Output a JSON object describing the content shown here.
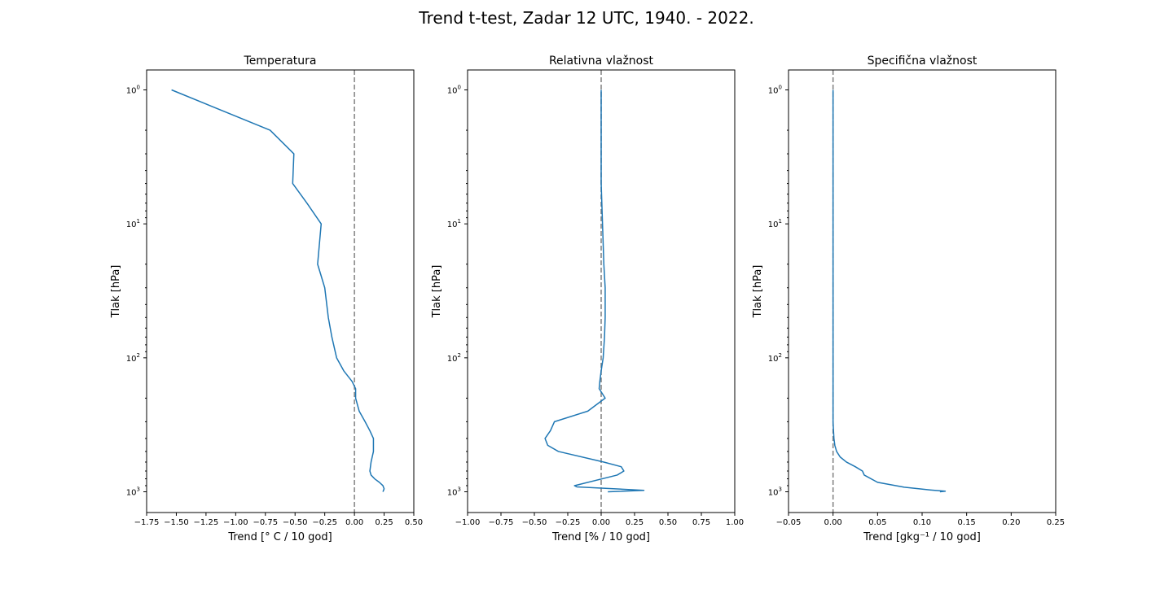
{
  "figure": {
    "title": "Trend t-test, Zadar 12 UTC, 1940. - 2022."
  },
  "chart_data": [
    {
      "type": "line",
      "title": "Temperatura",
      "xlabel": "Trend [° C / 10 god]",
      "ylabel": "Tlak [hPa]",
      "xlim": [
        -1.75,
        0.5
      ],
      "ylim": [
        1.0,
        1000
      ],
      "yscale": "log",
      "yinverted": true,
      "xticks": [
        -1.75,
        -1.5,
        -1.25,
        -1.0,
        -0.75,
        -0.5,
        -0.25,
        0.0,
        0.25,
        0.5
      ],
      "xticklabels": [
        "−1.75",
        "−1.50",
        "−1.25",
        "−1.00",
        "−0.75",
        "−0.50",
        "−0.25",
        "0.00",
        "0.25",
        "0.50"
      ],
      "yticks": [
        1,
        10,
        100,
        1000
      ],
      "yticklabels": [
        "10",
        "10",
        "10",
        "10"
      ],
      "yticksup": [
        "0",
        "1",
        "2",
        "3"
      ],
      "reference_line_x": 0.0,
      "line_color": "#1f77b4",
      "reference_color": "#808080",
      "series": [
        {
          "x": [
            -1.54,
            -0.71,
            -0.51,
            -0.52,
            -0.4,
            -0.28,
            -0.31,
            -0.25,
            -0.22,
            -0.19,
            -0.15,
            -0.09,
            -0.02,
            0.01,
            0.01,
            0.04,
            0.09,
            0.13,
            0.16,
            0.16,
            0.14,
            0.13,
            0.14,
            0.17,
            0.21,
            0.24,
            0.25,
            0.24
          ],
          "y": [
            1,
            2,
            3,
            5,
            7,
            10,
            20,
            30,
            50,
            70,
            100,
            125,
            150,
            170,
            200,
            250,
            300,
            350,
            400,
            500,
            600,
            700,
            750,
            800,
            850,
            900,
            950,
            1000
          ]
        }
      ]
    },
    {
      "type": "line",
      "title": "Relativna vlažnost",
      "xlabel": "Trend [% / 10 god]",
      "ylabel": "Tlak [hPa]",
      "xlim": [
        -1.0,
        1.0
      ],
      "ylim": [
        1.0,
        1000
      ],
      "yscale": "log",
      "yinverted": true,
      "xticks": [
        -1.0,
        -0.75,
        -0.5,
        -0.25,
        0.0,
        0.25,
        0.5,
        0.75,
        1.0
      ],
      "xticklabels": [
        "−1.00",
        "−0.75",
        "−0.50",
        "−0.25",
        "0.00",
        "0.25",
        "0.50",
        "0.75",
        "1.00"
      ],
      "yticks": [
        1,
        10,
        100,
        1000
      ],
      "yticklabels": [
        "10",
        "10",
        "10",
        "10"
      ],
      "yticksup": [
        "0",
        "1",
        "2",
        "3"
      ],
      "reference_line_x": 0.0,
      "line_color": "#1f77b4",
      "reference_color": "#808080",
      "series": [
        {
          "x": [
            0.0,
            0.0,
            0.0,
            0.0,
            0.005,
            0.01,
            0.02,
            0.03,
            0.03,
            0.025,
            0.015,
            0.0,
            -0.01,
            -0.015,
            0.03,
            -0.1,
            -0.35,
            -0.38,
            -0.42,
            -0.4,
            -0.32,
            0.02,
            0.15,
            0.17,
            0.12,
            -0.2,
            -0.18,
            0.32,
            0.05
          ],
          "y": [
            1,
            2,
            3,
            5,
            7,
            10,
            20,
            30,
            50,
            70,
            100,
            125,
            150,
            170,
            200,
            250,
            300,
            350,
            400,
            450,
            500,
            600,
            650,
            700,
            750,
            900,
            920,
            975,
            1000
          ]
        }
      ]
    },
    {
      "type": "line",
      "title": "Specifična vlažnost",
      "xlabel": "Trend [gkg⁻¹ / 10 god]",
      "ylabel": "Tlak [hPa]",
      "xlim": [
        -0.05,
        0.25
      ],
      "ylim": [
        1.0,
        1000
      ],
      "yscale": "log",
      "yinverted": true,
      "xticks": [
        -0.05,
        0.0,
        0.05,
        0.1,
        0.15,
        0.2,
        0.25
      ],
      "xticklabels": [
        "−0.05",
        "0.00",
        "0.05",
        "0.10",
        "0.15",
        "0.20",
        "0.25"
      ],
      "yticks": [
        1,
        10,
        100,
        1000
      ],
      "yticklabels": [
        "10",
        "10",
        "10",
        "10"
      ],
      "yticksup": [
        "0",
        "1",
        "2",
        "3"
      ],
      "reference_line_x": 0.0,
      "line_color": "#1f77b4",
      "reference_color": "#808080",
      "series": [
        {
          "x": [
            0.0,
            0.0,
            0.0,
            0.0,
            0.0,
            0.0,
            0.0,
            0.0,
            0.0,
            0.0,
            0.0,
            0.0,
            0.0,
            0.0,
            0.0,
            0.0005,
            0.001,
            0.002,
            0.004,
            0.008,
            0.015,
            0.025,
            0.033,
            0.035,
            0.05,
            0.08,
            0.11,
            0.126,
            0.12
          ],
          "y": [
            1,
            2,
            3,
            5,
            7,
            10,
            20,
            30,
            50,
            70,
            100,
            150,
            200,
            250,
            300,
            350,
            400,
            450,
            500,
            550,
            600,
            650,
            700,
            750,
            850,
            925,
            970,
            990,
            1000
          ]
        }
      ]
    }
  ]
}
